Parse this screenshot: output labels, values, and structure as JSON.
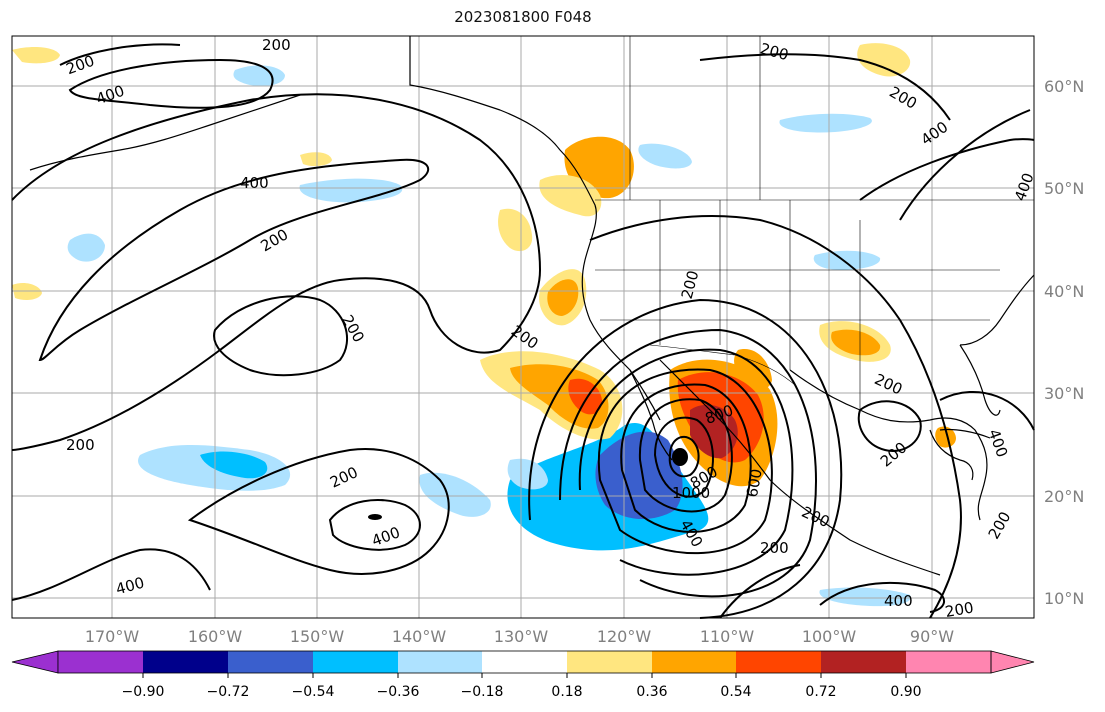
{
  "title": "2023081800 F048",
  "map": {
    "lat_labels": [
      "60°N",
      "50°N",
      "40°N",
      "30°N",
      "20°N",
      "10°N"
    ],
    "lon_labels": [
      "170°W",
      "160°W",
      "150°W",
      "140°W",
      "130°W",
      "120°W",
      "110°W",
      "100°W",
      "90°W"
    ],
    "contour_labels": [
      "200",
      "400",
      "600",
      "800",
      "1000"
    ],
    "gridlines": true
  },
  "colorbar": {
    "tick_labels": [
      "−0.90",
      "−0.72",
      "−0.54",
      "−0.36",
      "−0.18",
      "0.18",
      "0.36",
      "0.54",
      "0.72",
      "0.90"
    ],
    "colors": [
      "#9b30d0",
      "#00008b",
      "#3a5fcd",
      "#00bfff",
      "#aee2ff",
      "#ffffff",
      "#ffe680",
      "#ffa500",
      "#ff4500",
      "#b22222",
      "#ff85b0"
    ]
  },
  "colors": {
    "blue_strong": "#3a5fcd",
    "blue_mid": "#00bfff",
    "blue_light": "#aee2ff",
    "yellow": "#ffe680",
    "orange": "#ffa500",
    "red_orange": "#ff4500",
    "dark_red": "#b22222"
  }
}
